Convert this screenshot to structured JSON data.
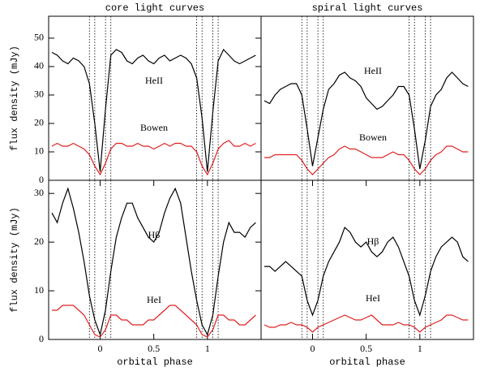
{
  "chart_data": [
    {
      "type": "line",
      "title": "core light curves",
      "ylabel": "flux density (mJy)",
      "x": [
        -0.45,
        -0.4,
        -0.35,
        -0.3,
        -0.25,
        -0.2,
        -0.15,
        -0.1,
        -0.05,
        0,
        0.05,
        0.1,
        0.15,
        0.2,
        0.25,
        0.3,
        0.35,
        0.4,
        0.45,
        0.5,
        0.55,
        0.6,
        0.65,
        0.7,
        0.75,
        0.8,
        0.85,
        0.9,
        0.95,
        1.0,
        1.05,
        1.1,
        1.15,
        1.2,
        1.25,
        1.3,
        1.35,
        1.4,
        1.45
      ],
      "xlim": [
        -0.48,
        1.5
      ],
      "ylim": [
        0,
        57.7
      ],
      "yticks": [
        0,
        10,
        20,
        30,
        40,
        50
      ],
      "vlines": [
        -0.1,
        -0.05,
        0.05,
        0.1,
        0.9,
        0.95,
        1.05,
        1.1
      ],
      "series": [
        {
          "name": "HeII",
          "color": "#000000",
          "values": [
            45,
            44,
            42,
            41,
            43,
            42,
            40,
            34,
            20,
            3,
            25,
            44,
            46,
            45,
            42,
            41,
            43,
            44,
            42,
            41,
            43,
            44,
            42,
            43,
            44,
            43,
            41,
            36,
            22,
            3,
            24,
            42,
            46,
            44,
            42,
            41,
            42,
            43,
            44
          ]
        },
        {
          "name": "Bowen",
          "color": "#e02020",
          "values": [
            12,
            13,
            12,
            12,
            13,
            12,
            11,
            9,
            5,
            2,
            6,
            11,
            13,
            13,
            12,
            12,
            13,
            12,
            12,
            11,
            12,
            13,
            12,
            13,
            13,
            12,
            12,
            10,
            5,
            2,
            6,
            11,
            13,
            14,
            12,
            12,
            13,
            12,
            13
          ]
        }
      ]
    },
    {
      "type": "line",
      "title": "spiral light curves",
      "x": [
        -0.45,
        -0.4,
        -0.35,
        -0.3,
        -0.25,
        -0.2,
        -0.15,
        -0.1,
        -0.05,
        0,
        0.05,
        0.1,
        0.15,
        0.2,
        0.25,
        0.3,
        0.35,
        0.4,
        0.45,
        0.5,
        0.55,
        0.6,
        0.65,
        0.7,
        0.75,
        0.8,
        0.85,
        0.9,
        0.95,
        1.0,
        1.05,
        1.1,
        1.15,
        1.2,
        1.25,
        1.3,
        1.35,
        1.4,
        1.45
      ],
      "xlim": [
        -0.48,
        1.5
      ],
      "ylim": [
        0,
        57.7
      ],
      "vlines": [
        -0.1,
        -0.05,
        0.05,
        0.1,
        0.9,
        0.95,
        1.05,
        1.1
      ],
      "series": [
        {
          "name": "HeII",
          "color": "#000000",
          "values": [
            28,
            27,
            30,
            32,
            33,
            34,
            34,
            30,
            18,
            5,
            15,
            25,
            32,
            34,
            37,
            38,
            36,
            35,
            33,
            29,
            27,
            25,
            26,
            28,
            30,
            33,
            33,
            30,
            18,
            4,
            14,
            26,
            30,
            32,
            36,
            38,
            36,
            34,
            33
          ]
        },
        {
          "name": "Bowen",
          "color": "#e02020",
          "values": [
            8,
            8,
            9,
            9,
            9,
            9,
            9,
            7,
            4,
            2,
            4,
            6,
            8,
            9,
            11,
            12,
            11,
            11,
            10,
            9,
            8,
            8,
            8,
            9,
            10,
            9,
            9,
            7,
            4,
            2,
            4,
            7,
            9,
            10,
            12,
            12,
            11,
            10,
            10
          ]
        }
      ]
    },
    {
      "type": "line",
      "xlabel": "orbital phase",
      "ylabel": "flux density (mJy)",
      "x": [
        -0.45,
        -0.4,
        -0.35,
        -0.3,
        -0.25,
        -0.2,
        -0.15,
        -0.1,
        -0.05,
        0,
        0.05,
        0.1,
        0.15,
        0.2,
        0.25,
        0.3,
        0.35,
        0.4,
        0.45,
        0.5,
        0.55,
        0.6,
        0.65,
        0.7,
        0.75,
        0.8,
        0.85,
        0.9,
        0.95,
        1.0,
        1.05,
        1.1,
        1.15,
        1.2,
        1.25,
        1.3,
        1.35,
        1.4,
        1.45
      ],
      "xlim": [
        -0.48,
        1.5
      ],
      "xticks": [
        0,
        0.5,
        1
      ],
      "ylim": [
        0,
        32.7
      ],
      "yticks": [
        0,
        10,
        20,
        30
      ],
      "vlines": [
        -0.1,
        -0.05,
        0.05,
        0.1,
        0.9,
        0.95,
        1.05,
        1.1
      ],
      "series": [
        {
          "name": "Hβ",
          "color": "#000000",
          "values": [
            26,
            24,
            28,
            31,
            27,
            22,
            16,
            9,
            4,
            1,
            6,
            14,
            21,
            25,
            28,
            28,
            25,
            23,
            21,
            20,
            22,
            26,
            29,
            31,
            28,
            21,
            14,
            8,
            3,
            1,
            5,
            13,
            20,
            24,
            22,
            22,
            21,
            23,
            24
          ]
        },
        {
          "name": "HeI",
          "color": "#e02020",
          "values": [
            6,
            6,
            7,
            7,
            7,
            6,
            5,
            3,
            1,
            0.5,
            2,
            5,
            5,
            4,
            4,
            3,
            3,
            3,
            4,
            4,
            5,
            6,
            7,
            7,
            6,
            5,
            4,
            3,
            1,
            0.5,
            2,
            5,
            5,
            4,
            4,
            3,
            3,
            4,
            5
          ]
        }
      ]
    },
    {
      "type": "line",
      "xlabel": "orbital phase",
      "x": [
        -0.45,
        -0.4,
        -0.35,
        -0.3,
        -0.25,
        -0.2,
        -0.15,
        -0.1,
        -0.05,
        0,
        0.05,
        0.1,
        0.15,
        0.2,
        0.25,
        0.3,
        0.35,
        0.4,
        0.45,
        0.5,
        0.55,
        0.6,
        0.65,
        0.7,
        0.75,
        0.8,
        0.85,
        0.9,
        0.95,
        1.0,
        1.05,
        1.1,
        1.15,
        1.2,
        1.25,
        1.3,
        1.35,
        1.4,
        1.45
      ],
      "xlim": [
        -0.48,
        1.5
      ],
      "xticks": [
        0,
        0.5,
        1
      ],
      "ylim": [
        0,
        32.7
      ],
      "vlines": [
        -0.1,
        -0.05,
        0.05,
        0.1,
        0.9,
        0.95,
        1.05,
        1.1
      ],
      "series": [
        {
          "name": "Hβ",
          "color": "#000000",
          "values": [
            15,
            15,
            14,
            15,
            16,
            15,
            14,
            13,
            8,
            5,
            8,
            13,
            16,
            18,
            20,
            23,
            22,
            20,
            19,
            20,
            18,
            17,
            18,
            20,
            21,
            19,
            16,
            13,
            8,
            5,
            9,
            14,
            17,
            19,
            20,
            21,
            20,
            17,
            16
          ]
        },
        {
          "name": "HeI",
          "color": "#e02020",
          "values": [
            3,
            2.5,
            2.5,
            3,
            3,
            3.5,
            3,
            3,
            2.5,
            1.5,
            2.5,
            3,
            3.5,
            4,
            4.5,
            5,
            4.5,
            4,
            4,
            4.5,
            5,
            4,
            3,
            3,
            3,
            3.5,
            3,
            3,
            2.5,
            1.5,
            2.5,
            3,
            3.5,
            4,
            5,
            5,
            4.5,
            4,
            4
          ]
        }
      ]
    }
  ]
}
